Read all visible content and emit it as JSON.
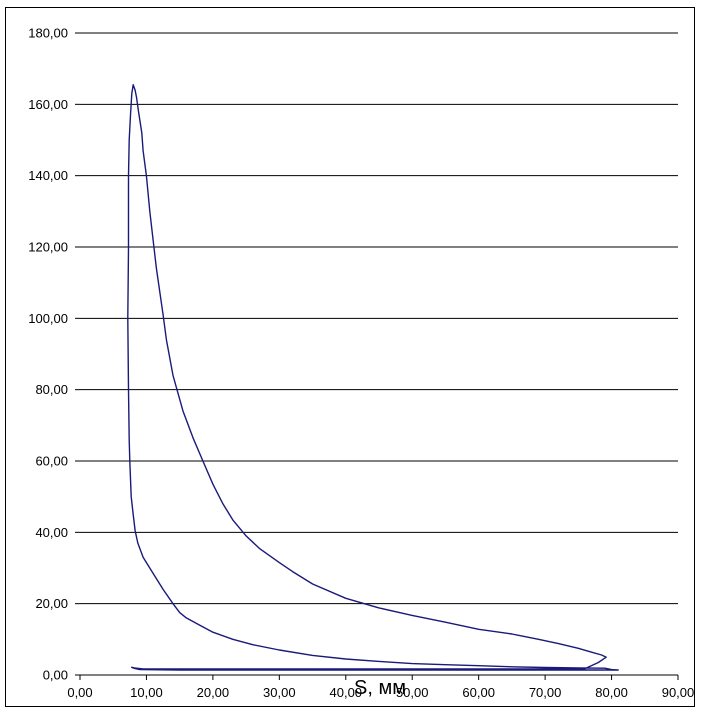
{
  "chart_data": {
    "type": "line",
    "title": "",
    "xlabel": "S, мм",
    "ylabel": "",
    "xlim": [
      0,
      90
    ],
    "ylim": [
      0,
      180
    ],
    "grid": "horizontal",
    "legend": "none",
    "x_ticks": [
      "0,00",
      "10,00",
      "20,00",
      "30,00",
      "40,00",
      "50,00",
      "60,00",
      "70,00",
      "80,00",
      "90,00"
    ],
    "y_ticks": [
      "0,00",
      "20,00",
      "40,00",
      "60,00",
      "80,00",
      "100,00",
      "120,00",
      "140,00",
      "160,00",
      "180,00"
    ],
    "colors": {
      "line": "#1a1a7a",
      "grid": "#000000",
      "axis": "#000000"
    },
    "series": [
      {
        "points": [
          [
            7.7,
            2.2
          ],
          [
            8.2,
            2.0
          ],
          [
            9.5,
            1.7
          ],
          [
            20,
            1.7
          ],
          [
            40,
            1.7
          ],
          [
            60,
            1.7
          ],
          [
            70,
            1.7
          ],
          [
            76,
            1.8
          ],
          [
            78,
            3.5
          ],
          [
            79.2,
            5.0
          ],
          [
            78.5,
            5.6
          ],
          [
            77,
            6.4
          ],
          [
            75,
            7.5
          ],
          [
            72,
            8.8
          ],
          [
            69,
            10.0
          ],
          [
            65,
            11.5
          ],
          [
            60,
            12.8
          ],
          [
            55,
            14.8
          ],
          [
            50,
            16.7
          ],
          [
            45,
            18.8
          ],
          [
            40,
            21.5
          ],
          [
            35,
            25.5
          ],
          [
            32,
            29.0
          ],
          [
            30,
            31.5
          ],
          [
            27,
            35.5
          ],
          [
            25,
            39.0
          ],
          [
            23,
            43.5
          ],
          [
            21.5,
            48.0
          ],
          [
            20,
            53.5
          ],
          [
            18.5,
            60.0
          ],
          [
            17,
            66.5
          ],
          [
            15.5,
            74.0
          ],
          [
            14,
            84.0
          ],
          [
            13,
            94.0
          ],
          [
            12.5,
            101.0
          ],
          [
            11.5,
            114.0
          ],
          [
            11,
            122.0
          ],
          [
            10.5,
            130.0
          ],
          [
            10,
            140.0
          ],
          [
            9.5,
            147.0
          ],
          [
            9.3,
            152.0
          ],
          [
            8.8,
            158.0
          ],
          [
            8.5,
            162.0
          ],
          [
            8.3,
            164.0
          ],
          [
            8.0,
            165.5
          ],
          [
            7.8,
            163.0
          ],
          [
            7.6,
            157.0
          ],
          [
            7.4,
            150.0
          ],
          [
            7.3,
            140.0
          ],
          [
            7.3,
            120.0
          ],
          [
            7.2,
            100.0
          ],
          [
            7.3,
            80.0
          ],
          [
            7.4,
            66.0
          ],
          [
            7.5,
            60.0
          ],
          [
            7.6,
            55.0
          ],
          [
            7.7,
            50.0
          ],
          [
            8.0,
            45.0
          ],
          [
            8.3,
            40.5
          ],
          [
            8.7,
            37.0
          ],
          [
            9.5,
            33.0
          ],
          [
            11,
            28.5
          ],
          [
            12.5,
            24.0
          ],
          [
            14,
            20.0
          ],
          [
            15,
            17.5
          ],
          [
            16,
            16.0
          ],
          [
            18,
            14.0
          ],
          [
            20,
            12.0
          ],
          [
            23,
            10.0
          ],
          [
            26,
            8.5
          ],
          [
            30,
            7.0
          ],
          [
            35,
            5.5
          ],
          [
            40,
            4.5
          ],
          [
            45,
            3.8
          ],
          [
            50,
            3.2
          ],
          [
            55,
            2.9
          ],
          [
            60,
            2.6
          ],
          [
            65,
            2.3
          ],
          [
            70,
            2.1
          ],
          [
            75,
            2.0
          ],
          [
            79,
            1.9
          ],
          [
            80,
            1.5
          ],
          [
            81,
            1.4
          ],
          [
            79,
            1.4
          ],
          [
            70,
            1.4
          ],
          [
            50,
            1.4
          ],
          [
            30,
            1.4
          ],
          [
            15,
            1.4
          ],
          [
            9.0,
            1.5
          ],
          [
            8.3,
            1.8
          ],
          [
            7.7,
            2.2
          ]
        ]
      }
    ]
  }
}
